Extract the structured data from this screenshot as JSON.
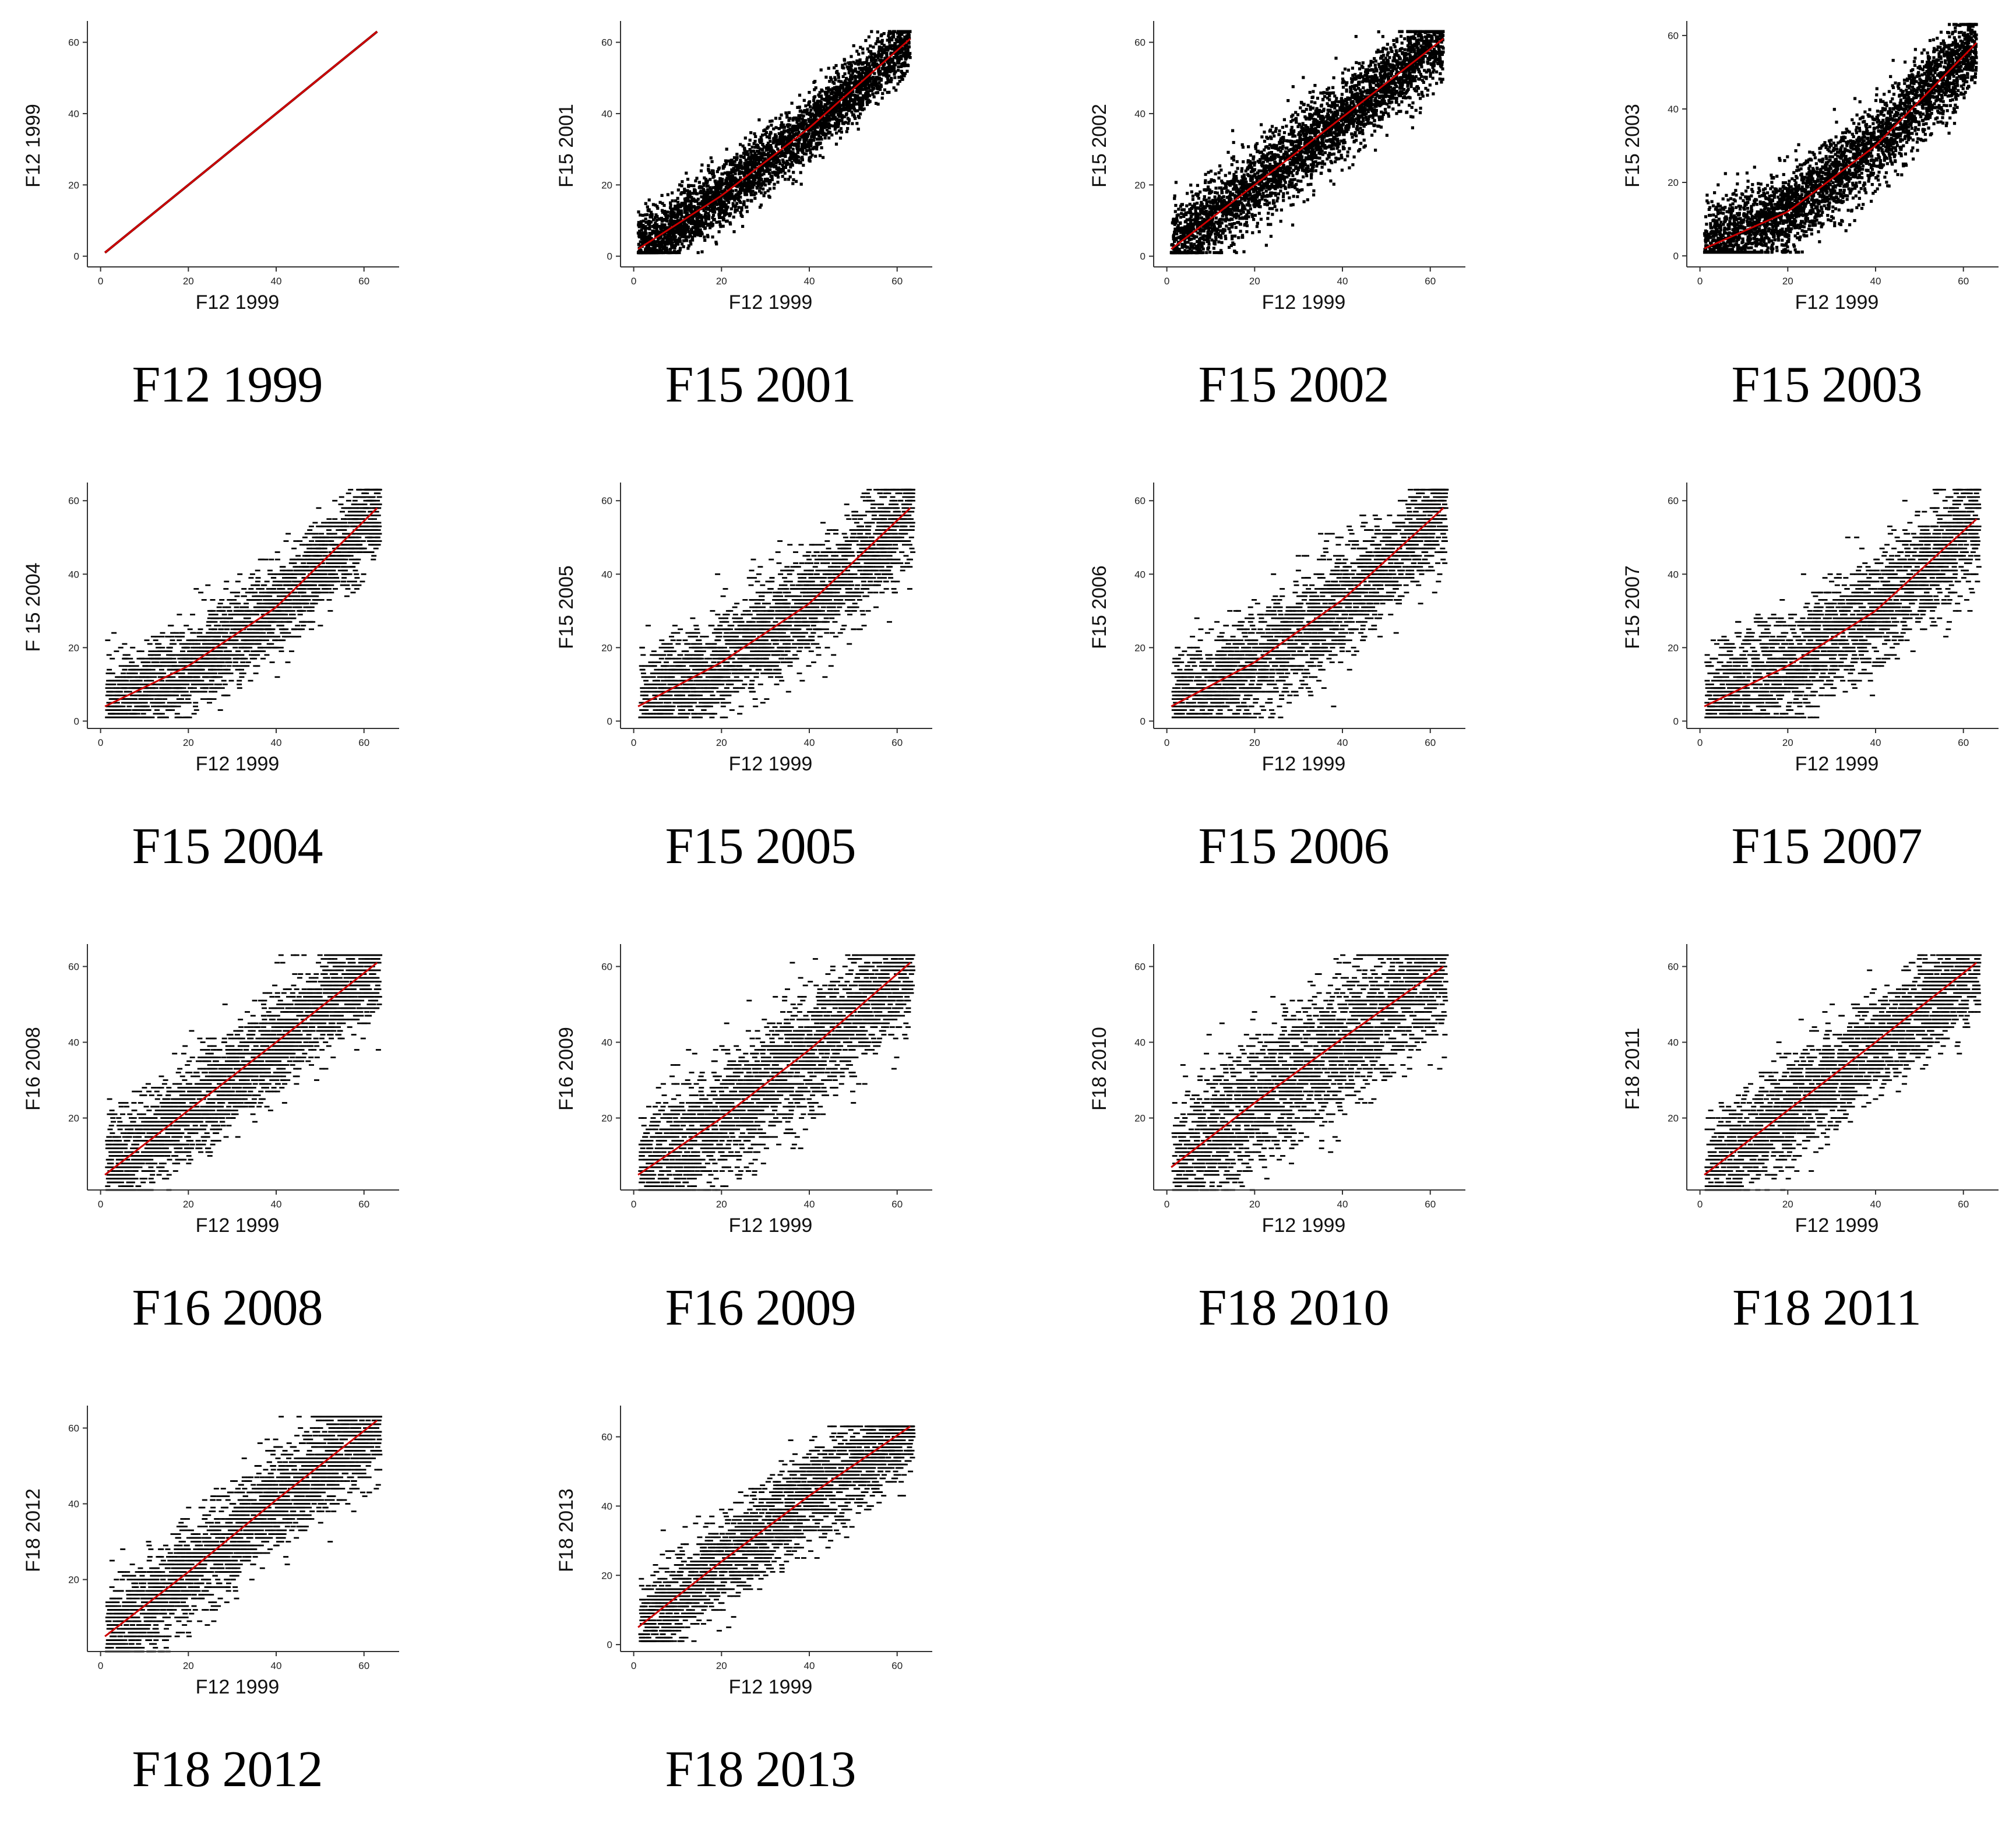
{
  "chart_data": [
    {
      "type": "scatter",
      "title": "F12 1999",
      "xlabel": "F12 1999",
      "ylabel": "F12 1999",
      "xlim": [
        -3,
        68
      ],
      "ylim": [
        -3,
        65
      ],
      "xticks": [
        0,
        20,
        40,
        60
      ],
      "yticks": [
        0,
        20,
        40,
        60
      ],
      "xticklabels": [
        "0",
        "20",
        "40",
        "60"
      ],
      "yticklabels": [
        "0",
        "20",
        "40",
        "60"
      ],
      "x_range": [
        1,
        63
      ],
      "fit": {
        "x": [
          1,
          63
        ],
        "y": [
          1,
          63
        ]
      },
      "spread": 0,
      "horizontal_streaks": false,
      "point_color": "#000000",
      "fit_color": "#cc0000"
    },
    {
      "type": "scatter",
      "title": "F15 2001",
      "xlabel": "F12 1999",
      "ylabel": "F15 2001",
      "xlim": [
        -3,
        68
      ],
      "ylim": [
        -3,
        65
      ],
      "xticks": [
        0,
        20,
        40,
        60
      ],
      "yticks": [
        0,
        20,
        40,
        60
      ],
      "xticklabels": [
        "0",
        "20",
        "40",
        "60"
      ],
      "yticklabels": [
        "0",
        "20",
        "40",
        "60"
      ],
      "x_range": [
        1,
        63
      ],
      "fit": {
        "x": [
          1,
          20,
          40,
          63
        ],
        "y": [
          2,
          17,
          36,
          61
        ]
      },
      "spread": 4.5,
      "horizontal_streaks": false,
      "point_color": "#000000",
      "fit_color": "#cc0000"
    },
    {
      "type": "scatter",
      "title": "F15 2002",
      "xlabel": "F12 1999",
      "ylabel": "F15 2002",
      "xlim": [
        -3,
        68
      ],
      "ylim": [
        -3,
        65
      ],
      "xticks": [
        0,
        20,
        40,
        60
      ],
      "yticks": [
        0,
        20,
        40,
        60
      ],
      "xticklabels": [
        "0",
        "20",
        "40",
        "60"
      ],
      "yticklabels": [
        "0",
        "20",
        "40",
        "60"
      ],
      "x_range": [
        1,
        63
      ],
      "fit": {
        "x": [
          1,
          20,
          40,
          63
        ],
        "y": [
          2,
          20,
          39,
          61
        ]
      },
      "spread": 5.5,
      "horizontal_streaks": false,
      "point_color": "#000000",
      "fit_color": "#cc0000"
    },
    {
      "type": "scatter",
      "title": "F15 2003",
      "xlabel": "F12 1999",
      "ylabel": "F15 2003",
      "xlim": [
        -3,
        68
      ],
      "ylim": [
        -3,
        63
      ],
      "xticks": [
        0,
        20,
        40,
        60
      ],
      "yticks": [
        0,
        20,
        40,
        60
      ],
      "xticklabels": [
        "0",
        "20",
        "40",
        "60"
      ],
      "yticklabels": [
        "0",
        "20",
        "40",
        "60"
      ],
      "x_range": [
        1,
        63
      ],
      "fit": {
        "x": [
          1,
          20,
          40,
          63
        ],
        "y": [
          2,
          12,
          30,
          58
        ]
      },
      "spread": 5.5,
      "horizontal_streaks": false,
      "point_color": "#000000",
      "fit_color": "#cc0000"
    },
    {
      "type": "scatter",
      "title": "F15 2004",
      "xlabel": "F12 1999",
      "ylabel": "F 15 2004",
      "xlim": [
        -3,
        68
      ],
      "ylim": [
        -2,
        64
      ],
      "xticks": [
        0,
        20,
        40,
        60
      ],
      "yticks": [
        0,
        20,
        40,
        60
      ],
      "xticklabels": [
        "0",
        "20",
        "40",
        "60"
      ],
      "yticklabels": [
        "0",
        "20",
        "40",
        "60"
      ],
      "x_range": [
        1,
        63
      ],
      "fit": {
        "x": [
          1,
          20,
          40,
          63
        ],
        "y": [
          4,
          15,
          31,
          58
        ]
      },
      "spread": 6,
      "horizontal_streaks": true,
      "point_color": "#000000",
      "fit_color": "#cc0000"
    },
    {
      "type": "scatter",
      "title": "F15 2005",
      "xlabel": "F12 1999",
      "ylabel": "F15 2005",
      "xlim": [
        -3,
        68
      ],
      "ylim": [
        -2,
        64
      ],
      "xticks": [
        0,
        20,
        40,
        60
      ],
      "yticks": [
        0,
        20,
        40,
        60
      ],
      "xticklabels": [
        "0",
        "20",
        "40",
        "60"
      ],
      "yticklabels": [
        "0",
        "20",
        "40",
        "60"
      ],
      "x_range": [
        1,
        63
      ],
      "fit": {
        "x": [
          1,
          20,
          40,
          63
        ],
        "y": [
          4,
          16,
          32,
          58
        ]
      },
      "spread": 7,
      "horizontal_streaks": true,
      "point_color": "#000000",
      "fit_color": "#cc0000"
    },
    {
      "type": "scatter",
      "title": "F15 2006",
      "xlabel": "F12 1999",
      "ylabel": "F15 2006",
      "xlim": [
        -3,
        68
      ],
      "ylim": [
        -2,
        64
      ],
      "xticks": [
        0,
        20,
        40,
        60
      ],
      "yticks": [
        0,
        20,
        40,
        60
      ],
      "xticklabels": [
        "0",
        "20",
        "40",
        "60"
      ],
      "yticklabels": [
        "0",
        "20",
        "40",
        "60"
      ],
      "x_range": [
        1,
        63
      ],
      "fit": {
        "x": [
          1,
          20,
          40,
          63
        ],
        "y": [
          4,
          16,
          33,
          58
        ]
      },
      "spread": 7,
      "horizontal_streaks": true,
      "point_color": "#000000",
      "fit_color": "#cc0000"
    },
    {
      "type": "scatter",
      "title": "F15 2007",
      "xlabel": "F12 1999",
      "ylabel": "F15 2007",
      "xlim": [
        -3,
        68
      ],
      "ylim": [
        -2,
        64
      ],
      "xticks": [
        0,
        20,
        40,
        60
      ],
      "yticks": [
        0,
        20,
        40,
        60
      ],
      "xticklabels": [
        "0",
        "20",
        "40",
        "60"
      ],
      "yticklabels": [
        "0",
        "20",
        "40",
        "60"
      ],
      "x_range": [
        1,
        63
      ],
      "fit": {
        "x": [
          1,
          20,
          40,
          63
        ],
        "y": [
          4,
          15,
          30,
          55
        ]
      },
      "spread": 7.5,
      "horizontal_streaks": true,
      "point_color": "#000000",
      "fit_color": "#cc0000"
    },
    {
      "type": "scatter",
      "title": "F16 2008",
      "xlabel": "F12 1999",
      "ylabel": "F16 2008",
      "xlim": [
        -3,
        68
      ],
      "ylim": [
        1,
        65
      ],
      "xticks": [
        0,
        20,
        40,
        60
      ],
      "yticks": [
        20,
        40,
        60
      ],
      "xticklabels": [
        "0",
        "20",
        "40",
        "60"
      ],
      "yticklabels": [
        "20",
        "40",
        "60"
      ],
      "x_range": [
        1,
        63
      ],
      "fit": {
        "x": [
          1,
          20,
          40,
          63
        ],
        "y": [
          5,
          22,
          40,
          61
        ]
      },
      "spread": 6.5,
      "horizontal_streaks": true,
      "point_color": "#000000",
      "fit_color": "#cc0000"
    },
    {
      "type": "scatter",
      "title": "F16 2009",
      "xlabel": "F12 1999",
      "ylabel": "F16 2009",
      "xlim": [
        -3,
        68
      ],
      "ylim": [
        1,
        65
      ],
      "xticks": [
        0,
        20,
        40,
        60
      ],
      "yticks": [
        20,
        40,
        60
      ],
      "xticklabels": [
        "0",
        "20",
        "40",
        "60"
      ],
      "yticklabels": [
        "20",
        "40",
        "60"
      ],
      "x_range": [
        1,
        63
      ],
      "fit": {
        "x": [
          1,
          20,
          40,
          63
        ],
        "y": [
          5,
          20,
          38,
          61
        ]
      },
      "spread": 8,
      "horizontal_streaks": true,
      "point_color": "#000000",
      "fit_color": "#cc0000"
    },
    {
      "type": "scatter",
      "title": "F18 2010",
      "xlabel": "F12 1999",
      "ylabel": "F18 2010",
      "xlim": [
        -3,
        68
      ],
      "ylim": [
        1,
        65
      ],
      "xticks": [
        0,
        20,
        40,
        60
      ],
      "yticks": [
        20,
        40,
        60
      ],
      "xticklabels": [
        "0",
        "20",
        "40",
        "60"
      ],
      "yticklabels": [
        "20",
        "40",
        "60"
      ],
      "x_range": [
        1,
        63
      ],
      "fit": {
        "x": [
          1,
          20,
          40,
          63
        ],
        "y": [
          7,
          24,
          41,
          60
        ]
      },
      "spread": 9,
      "horizontal_streaks": true,
      "point_color": "#000000",
      "fit_color": "#cc0000"
    },
    {
      "type": "scatter",
      "title": "F18 2011",
      "xlabel": "F12 1999",
      "ylabel": "F18 2011",
      "xlim": [
        -3,
        68
      ],
      "ylim": [
        1,
        65
      ],
      "xticks": [
        0,
        20,
        40,
        60
      ],
      "yticks": [
        20,
        40,
        60
      ],
      "xticklabels": [
        "0",
        "20",
        "40",
        "60"
      ],
      "yticklabels": [
        "20",
        "40",
        "60"
      ],
      "x_range": [
        1,
        63
      ],
      "fit": {
        "x": [
          1,
          20,
          40,
          63
        ],
        "y": [
          5,
          22,
          40,
          61
        ]
      },
      "spread": 6.5,
      "horizontal_streaks": true,
      "point_color": "#000000",
      "fit_color": "#cc0000"
    },
    {
      "type": "scatter",
      "title": "F18 2012",
      "xlabel": "F12 1999",
      "ylabel": "F18 2012",
      "xlim": [
        -3,
        68
      ],
      "ylim": [
        1,
        65
      ],
      "xticks": [
        0,
        20,
        40,
        60
      ],
      "yticks": [
        20,
        40,
        60
      ],
      "xticklabels": [
        "0",
        "20",
        "40",
        "60"
      ],
      "yticklabels": [
        "20",
        "40",
        "60"
      ],
      "x_range": [
        1,
        63
      ],
      "fit": {
        "x": [
          1,
          20,
          40,
          63
        ],
        "y": [
          5,
          22,
          41,
          62
        ]
      },
      "spread": 6.5,
      "horizontal_streaks": true,
      "point_color": "#000000",
      "fit_color": "#cc0000"
    },
    {
      "type": "scatter",
      "title": "F18 2013",
      "xlabel": "F12 1999",
      "ylabel": "F18 2013",
      "xlim": [
        -3,
        68
      ],
      "ylim": [
        -2,
        68
      ],
      "xticks": [
        0,
        20,
        40,
        60
      ],
      "yticks": [
        0,
        20,
        40,
        60
      ],
      "xticklabels": [
        "0",
        "20",
        "40",
        "60"
      ],
      "yticklabels": [
        "0",
        "20",
        "40",
        "60"
      ],
      "x_range": [
        1,
        63
      ],
      "fit": {
        "x": [
          1,
          20,
          40,
          63
        ],
        "y": [
          5,
          24,
          43,
          63
        ]
      },
      "spread": 6.5,
      "horizontal_streaks": true,
      "point_color": "#000000",
      "fit_color": "#cc0000"
    }
  ]
}
